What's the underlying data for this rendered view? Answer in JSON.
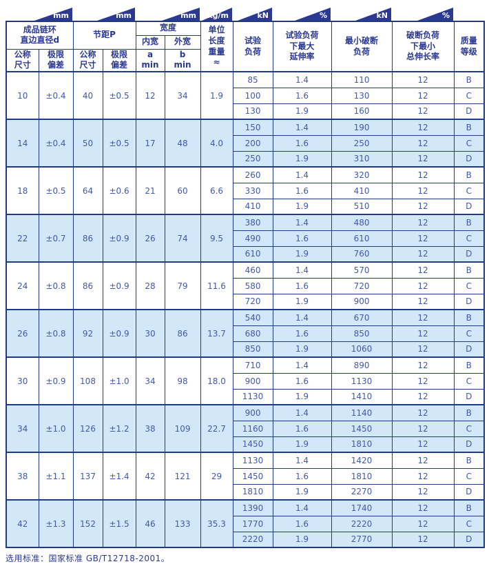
{
  "colors": {
    "border_navy": "#1F3A85",
    "flag_navy": "#2B3990",
    "header_text": "#2B3990",
    "data_text": "#4458A8",
    "row_blue": "#D2E8F8",
    "row_white": "#FFFFFF"
  },
  "table": {
    "unit_flags": [
      "mm",
      "mm",
      "mm",
      "kg/m",
      "kN",
      "%",
      "kN",
      "%"
    ],
    "headers": {
      "d_group": "成品链环\n直边直径d",
      "p_group": "节距P",
      "width_group": "宽度",
      "inner_width": "内宽",
      "outer_width": "外宽",
      "nominal_size": "公称\n尺寸",
      "tolerance": "极限\n偏差",
      "a_min": "a\nmin",
      "b_min": "b\nmin",
      "unit_weight": "单位\n长度\n重量\n≈",
      "test_load": "试验\n负荷",
      "max_elongation": "试验负荷\n下最大\n延伸率",
      "min_break_load": "最小破断\n负荷",
      "min_total_elongation": "破断负荷\n下最小\n总伸长率",
      "grade": "质量\n等级"
    },
    "groups": [
      {
        "d": "10",
        "d_tol": "±0.4",
        "p": "40",
        "p_tol": "±0.5",
        "a": "12",
        "b": "34",
        "w": "1.9",
        "rows": [
          {
            "test": "85",
            "elong": "1.4",
            "break": "110",
            "total": "12",
            "grade": "B"
          },
          {
            "test": "100",
            "elong": "1.6",
            "break": "130",
            "total": "12",
            "grade": "C"
          },
          {
            "test": "130",
            "elong": "1.9",
            "break": "160",
            "total": "12",
            "grade": "D"
          }
        ]
      },
      {
        "d": "14",
        "d_tol": "±0.4",
        "p": "50",
        "p_tol": "±0.5",
        "a": "17",
        "b": "48",
        "w": "4.0",
        "rows": [
          {
            "test": "150",
            "elong": "1.4",
            "break": "190",
            "total": "12",
            "grade": "B"
          },
          {
            "test": "200",
            "elong": "1.6",
            "break": "250",
            "total": "12",
            "grade": "C"
          },
          {
            "test": "250",
            "elong": "1.9",
            "break": "310",
            "total": "12",
            "grade": "D"
          }
        ]
      },
      {
        "d": "18",
        "d_tol": "±0.5",
        "p": "64",
        "p_tol": "±0.6",
        "a": "21",
        "b": "60",
        "w": "6.6",
        "rows": [
          {
            "test": "260",
            "elong": "1.4",
            "break": "320",
            "total": "12",
            "grade": "B"
          },
          {
            "test": "330",
            "elong": "1.6",
            "break": "410",
            "total": "12",
            "grade": "C"
          },
          {
            "test": "410",
            "elong": "1.9",
            "break": "510",
            "total": "12",
            "grade": "D"
          }
        ]
      },
      {
        "d": "22",
        "d_tol": "±0.7",
        "p": "86",
        "p_tol": "±0.9",
        "a": "26",
        "b": "74",
        "w": "9.5",
        "rows": [
          {
            "test": "380",
            "elong": "1.4",
            "break": "480",
            "total": "12",
            "grade": "B"
          },
          {
            "test": "490",
            "elong": "1.6",
            "break": "610",
            "total": "12",
            "grade": "C"
          },
          {
            "test": "610",
            "elong": "1.9",
            "break": "760",
            "total": "12",
            "grade": "D"
          }
        ]
      },
      {
        "d": "24",
        "d_tol": "±0.8",
        "p": "86",
        "p_tol": "±0.9",
        "a": "28",
        "b": "79",
        "w": "11.6",
        "rows": [
          {
            "test": "460",
            "elong": "1.4",
            "break": "570",
            "total": "12",
            "grade": "B"
          },
          {
            "test": "580",
            "elong": "1.6",
            "break": "720",
            "total": "12",
            "grade": "C"
          },
          {
            "test": "720",
            "elong": "1.9",
            "break": "900",
            "total": "12",
            "grade": "D"
          }
        ]
      },
      {
        "d": "26",
        "d_tol": "±0.8",
        "p": "92",
        "p_tol": "±0.9",
        "a": "30",
        "b": "86",
        "w": "13.7",
        "rows": [
          {
            "test": "540",
            "elong": "1.4",
            "break": "670",
            "total": "12",
            "grade": "B"
          },
          {
            "test": "680",
            "elong": "1.6",
            "break": "850",
            "total": "12",
            "grade": "C"
          },
          {
            "test": "850",
            "elong": "1.9",
            "break": "1060",
            "total": "12",
            "grade": "D"
          }
        ]
      },
      {
        "d": "30",
        "d_tol": "±0.9",
        "p": "108",
        "p_tol": "±1.0",
        "a": "34",
        "b": "98",
        "w": "18.0",
        "rows": [
          {
            "test": "710",
            "elong": "1.4",
            "break": "890",
            "total": "12",
            "grade": "B"
          },
          {
            "test": "900",
            "elong": "1.6",
            "break": "1130",
            "total": "12",
            "grade": "C"
          },
          {
            "test": "1130",
            "elong": "1.9",
            "break": "1410",
            "total": "12",
            "grade": "D"
          }
        ]
      },
      {
        "d": "34",
        "d_tol": "±1.0",
        "p": "126",
        "p_tol": "±1.2",
        "a": "38",
        "b": "109",
        "w": "22.7",
        "rows": [
          {
            "test": "900",
            "elong": "1.4",
            "break": "1140",
            "total": "12",
            "grade": "B"
          },
          {
            "test": "1160",
            "elong": "1.6",
            "break": "1450",
            "total": "12",
            "grade": "C"
          },
          {
            "test": "1450",
            "elong": "1.9",
            "break": "1810",
            "total": "12",
            "grade": "D"
          }
        ]
      },
      {
        "d": "38",
        "d_tol": "±1.1",
        "p": "137",
        "p_tol": "±1.4",
        "a": "42",
        "b": "121",
        "w": "29",
        "rows": [
          {
            "test": "1130",
            "elong": "1.4",
            "break": "1420",
            "total": "12",
            "grade": "B"
          },
          {
            "test": "1450",
            "elong": "1.6",
            "break": "1810",
            "total": "12",
            "grade": "C"
          },
          {
            "test": "1810",
            "elong": "1.9",
            "break": "2270",
            "total": "12",
            "grade": "D"
          }
        ]
      },
      {
        "d": "42",
        "d_tol": "±1.3",
        "p": "152",
        "p_tol": "±1.5",
        "a": "46",
        "b": "133",
        "w": "35.3",
        "rows": [
          {
            "test": "1390",
            "elong": "1.4",
            "break": "1740",
            "total": "12",
            "grade": "B"
          },
          {
            "test": "1770",
            "elong": "1.6",
            "break": "2220",
            "total": "12",
            "grade": "C"
          },
          {
            "test": "2220",
            "elong": "1.9",
            "break": "2770",
            "total": "12",
            "grade": "D"
          }
        ]
      }
    ]
  },
  "footer": {
    "standard_note": "选用标准：国家标准 GB/T12718-2001。"
  }
}
